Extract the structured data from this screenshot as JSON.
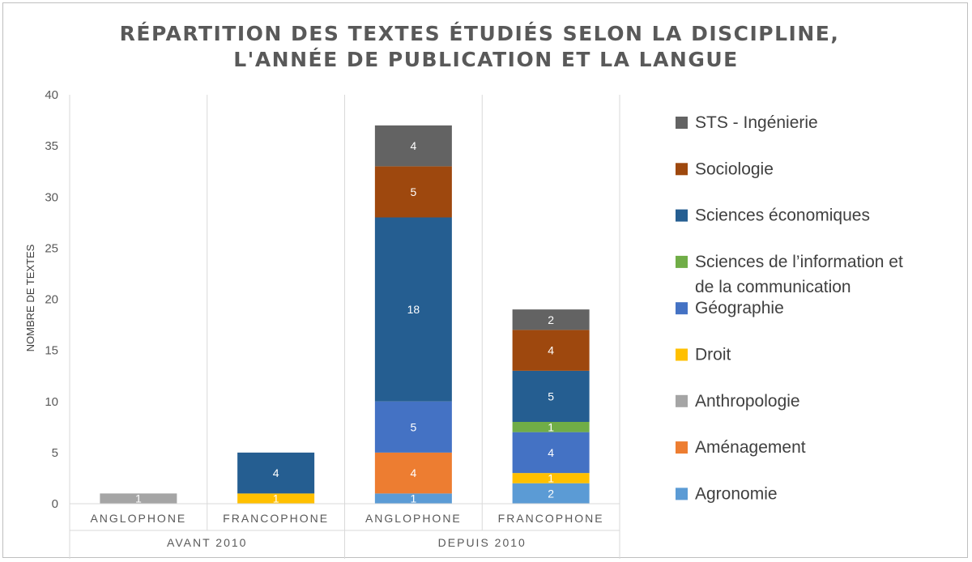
{
  "chart_data": {
    "type": "bar",
    "stacked": true,
    "title_lines": [
      "RÉPARTITION DES TEXTES ÉTUDIÉS SELON LA DISCIPLINE,",
      "L'ANNÉE DE PUBLICATION ET LA LANGUE"
    ],
    "ylabel": "NOMBRE DE TEXTES",
    "ylim": [
      0,
      40
    ],
    "yticks": [
      0,
      5,
      10,
      15,
      20,
      25,
      30,
      35,
      40
    ],
    "groups": [
      "AVANT 2010",
      "DEPUIS 2010"
    ],
    "categories": [
      "ANGLOPHONE",
      "FRANCOPHONE",
      "ANGLOPHONE",
      "FRANCOPHONE"
    ],
    "category_group": [
      0,
      0,
      1,
      1
    ],
    "series": [
      {
        "name": "Agronomie",
        "color": "#5b9bd5",
        "values": [
          0,
          0,
          1,
          2
        ]
      },
      {
        "name": "Aménagement",
        "color": "#ed7d31",
        "values": [
          0,
          0,
          4,
          0
        ]
      },
      {
        "name": "Anthropologie",
        "color": "#a5a5a5",
        "values": [
          1,
          0,
          0,
          0
        ]
      },
      {
        "name": "Droit",
        "color": "#ffc000",
        "values": [
          0,
          1,
          0,
          1
        ]
      },
      {
        "name": "Géographie",
        "color": "#4472c4",
        "values": [
          0,
          0,
          5,
          4
        ]
      },
      {
        "name": "Sciences de l’information et de la communication",
        "legend_lines": [
          "Sciences de l’information et",
          "de la communication"
        ],
        "color": "#70ad47",
        "values": [
          0,
          0,
          0,
          1
        ]
      },
      {
        "name": "Sciences économiques",
        "color": "#255e91",
        "values": [
          0,
          4,
          18,
          5
        ]
      },
      {
        "name": "Sociologie",
        "color": "#9e480e",
        "values": [
          0,
          0,
          5,
          4
        ]
      },
      {
        "name": "STS - Ingénierie",
        "color": "#636363",
        "values": [
          0,
          0,
          4,
          2
        ]
      }
    ],
    "legend_position": "right",
    "grid": "vertical separators only"
  }
}
